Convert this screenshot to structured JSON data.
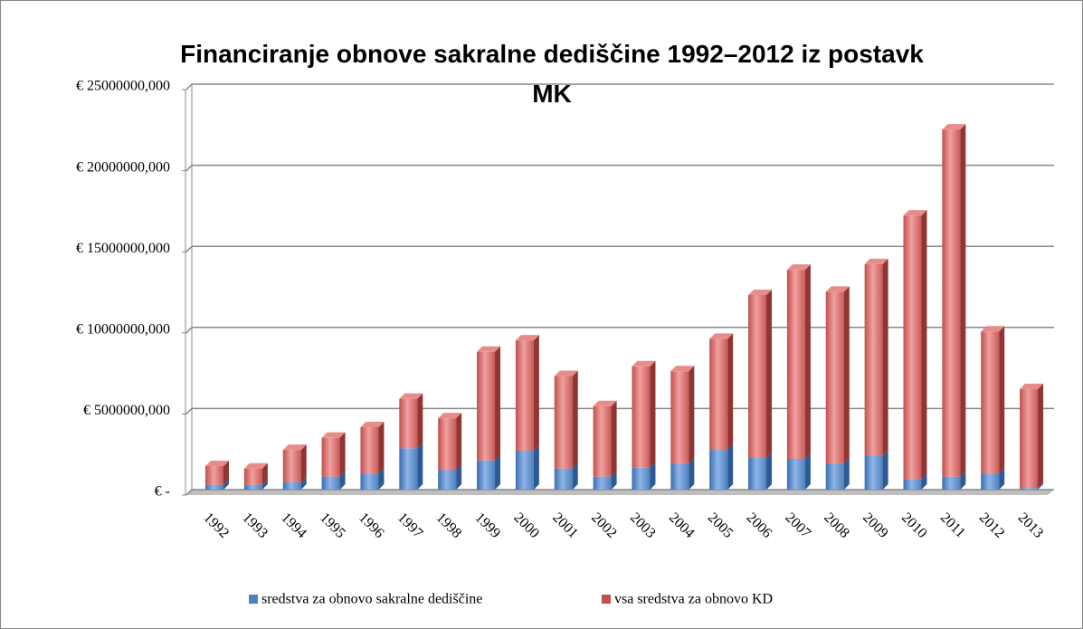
{
  "chart_data": {
    "type": "bar",
    "stacked": true,
    "title": "Financiranje obnove sakralne dediščine 1992–2012 iz postavk MK",
    "categories": [
      "1992",
      "1993",
      "1994",
      "1995",
      "1996",
      "1997",
      "1998",
      "1999",
      "2000",
      "2001",
      "2002",
      "2003",
      "2004",
      "2005",
      "2006",
      "2007",
      "2008",
      "2009",
      "2010",
      "2011",
      "2012",
      "2013"
    ],
    "series": [
      {
        "name": "sredstva za obnovo sakralne dediščine",
        "color": "#4f81bd",
        "values": [
          300000,
          300000,
          450000,
          800000,
          1000000,
          2550000,
          1200000,
          1800000,
          2400000,
          1300000,
          800000,
          1350000,
          1600000,
          2450000,
          1950000,
          1900000,
          1600000,
          2100000,
          650000,
          800000,
          1000000,
          100000
        ]
      },
      {
        "name": "vsa sredstva za obnovo KD",
        "color": "#c0504d",
        "values": [
          1150000,
          1000000,
          2000000,
          2400000,
          2850000,
          3050000,
          3200000,
          6700000,
          6800000,
          5700000,
          4350000,
          6250000,
          5700000,
          6850000,
          10050000,
          11650000,
          10600000,
          11800000,
          16250000,
          21400000,
          8750000,
          6100000
        ]
      }
    ],
    "ylim": [
      0,
      25000000
    ],
    "yticks": [
      {
        "value": 0,
        "label": "€ -"
      },
      {
        "value": 5000000,
        "label": "€ 5000000,000"
      },
      {
        "value": 10000000,
        "label": "€ 10000000,000"
      },
      {
        "value": 15000000,
        "label": "€ 15000000,000"
      },
      {
        "value": 20000000,
        "label": "€ 20000000,000"
      },
      {
        "value": 25000000,
        "label": "€ 25000000,000"
      }
    ],
    "grid": true,
    "legend": "bottom"
  }
}
